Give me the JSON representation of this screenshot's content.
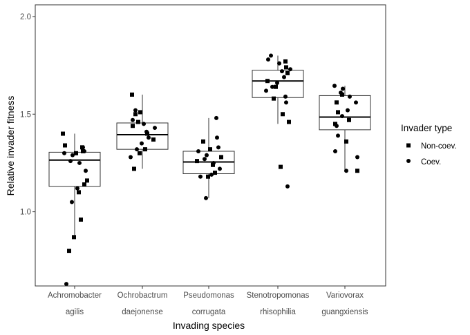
{
  "chart_data": {
    "type": "box",
    "xlabel": "Invading species",
    "ylabel": "Relative invader fitness",
    "ylim": [
      0.62,
      2.06
    ],
    "yticks": [
      "1.0",
      "1.5",
      "2.0"
    ],
    "ytick_values": [
      1.0,
      1.5,
      2.0
    ],
    "grid": false,
    "legend": {
      "title": "Invader type",
      "position": "right",
      "entries": [
        {
          "label": "Non-coev.",
          "marker": "square"
        },
        {
          "label": "Coev.",
          "marker": "circle"
        }
      ]
    },
    "categories": [
      {
        "line1": "Achromobacter",
        "line2": "agilis"
      },
      {
        "line1": "Ochrobactrum",
        "line2": "daejonense"
      },
      {
        "line1": "Pseudomonas",
        "line2": "corrugata"
      },
      {
        "line1": "Stenotropomonas",
        "line2": "rhisophilia"
      },
      {
        "line1": "Variovorax",
        "line2": "guangxiensis"
      }
    ],
    "boxes": [
      {
        "q1": 1.13,
        "median": 1.265,
        "q3": 1.305,
        "whisker_low": 0.87,
        "whisker_high": 1.4
      },
      {
        "q1": 1.32,
        "median": 1.395,
        "q3": 1.455,
        "whisker_low": 1.22,
        "whisker_high": 1.6
      },
      {
        "q1": 1.195,
        "median": 1.255,
        "q3": 1.31,
        "whisker_low": 1.07,
        "whisker_high": 1.48
      },
      {
        "q1": 1.585,
        "median": 1.67,
        "q3": 1.725,
        "whisker_low": 1.45,
        "whisker_high": 1.8
      },
      {
        "q1": 1.42,
        "median": 1.485,
        "q3": 1.595,
        "whisker_low": 1.21,
        "whisker_high": 1.645
      }
    ],
    "series": [
      {
        "name": "Non-coev.",
        "marker": "square",
        "points": [
          [
            0,
            1.34
          ],
          [
            0,
            1.3
          ],
          [
            0,
            1.16
          ],
          [
            0,
            1.1
          ],
          [
            0,
            0.96
          ],
          [
            0,
            0.87
          ],
          [
            0,
            0.8
          ],
          [
            0,
            1.4
          ],
          [
            0,
            1.33
          ],
          [
            0,
            1.31
          ],
          [
            0,
            1.14
          ],
          [
            1,
            1.6
          ],
          [
            1,
            1.51
          ],
          [
            1,
            1.46
          ],
          [
            1,
            1.4
          ],
          [
            1,
            1.37
          ],
          [
            1,
            1.32
          ],
          [
            1,
            1.3
          ],
          [
            1,
            1.22
          ],
          [
            1,
            1.5
          ],
          [
            1,
            1.44
          ],
          [
            2,
            1.32
          ],
          [
            2,
            1.28
          ],
          [
            2,
            1.24
          ],
          [
            2,
            1.2
          ],
          [
            2,
            1.18
          ],
          [
            2,
            1.36
          ],
          [
            2,
            1.26
          ],
          [
            3,
            1.77
          ],
          [
            3,
            1.74
          ],
          [
            3,
            1.71
          ],
          [
            3,
            1.67
          ],
          [
            3,
            1.64
          ],
          [
            3,
            1.58
          ],
          [
            3,
            1.5
          ],
          [
            3,
            1.46
          ],
          [
            3,
            1.23
          ],
          [
            4,
            1.6
          ],
          [
            4,
            1.56
          ],
          [
            4,
            1.51
          ],
          [
            4,
            1.45
          ],
          [
            4,
            1.36
          ],
          [
            4,
            1.21
          ],
          [
            4,
            1.47
          ]
        ]
      },
      {
        "name": "Coev.",
        "marker": "circle",
        "points": [
          [
            0,
            1.33
          ],
          [
            0,
            1.31
          ],
          [
            0,
            1.3
          ],
          [
            0,
            1.29
          ],
          [
            0,
            1.26
          ],
          [
            0,
            1.25
          ],
          [
            0,
            1.21
          ],
          [
            0,
            1.12
          ],
          [
            0,
            1.05
          ],
          [
            0,
            0.63
          ],
          [
            1,
            1.52
          ],
          [
            1,
            1.47
          ],
          [
            1,
            1.45
          ],
          [
            1,
            1.43
          ],
          [
            1,
            1.41
          ],
          [
            1,
            1.38
          ],
          [
            1,
            1.35
          ],
          [
            1,
            1.32
          ],
          [
            1,
            1.28
          ],
          [
            2,
            1.48
          ],
          [
            2,
            1.38
          ],
          [
            2,
            1.33
          ],
          [
            2,
            1.31
          ],
          [
            2,
            1.29
          ],
          [
            2,
            1.27
          ],
          [
            2,
            1.25
          ],
          [
            2,
            1.22
          ],
          [
            2,
            1.19
          ],
          [
            2,
            1.07
          ],
          [
            2,
            1.18
          ],
          [
            3,
            1.8
          ],
          [
            3,
            1.78
          ],
          [
            3,
            1.76
          ],
          [
            3,
            1.73
          ],
          [
            3,
            1.72
          ],
          [
            3,
            1.69
          ],
          [
            3,
            1.66
          ],
          [
            3,
            1.64
          ],
          [
            3,
            1.62
          ],
          [
            3,
            1.59
          ],
          [
            3,
            1.56
          ],
          [
            3,
            1.13
          ],
          [
            4,
            1.645
          ],
          [
            4,
            1.63
          ],
          [
            4,
            1.61
          ],
          [
            4,
            1.59
          ],
          [
            4,
            1.56
          ],
          [
            4,
            1.52
          ],
          [
            4,
            1.49
          ],
          [
            4,
            1.44
          ],
          [
            4,
            1.39
          ],
          [
            4,
            1.31
          ],
          [
            4,
            1.21
          ],
          [
            4,
            1.28
          ]
        ]
      }
    ]
  }
}
